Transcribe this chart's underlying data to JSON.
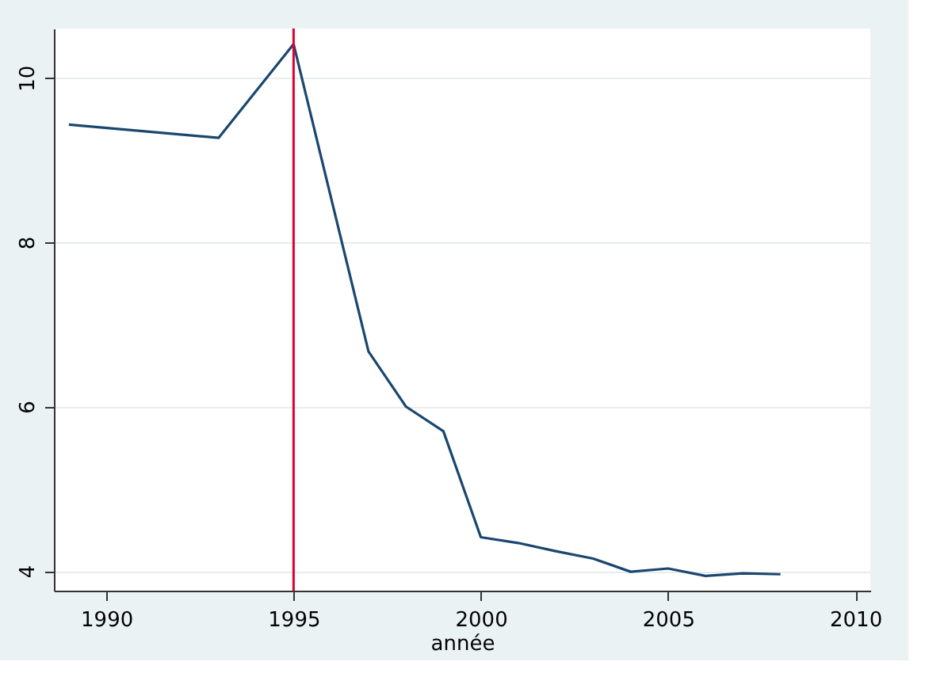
{
  "chart_data": {
    "type": "line",
    "xlabel": "année",
    "x": [
      1989,
      1993,
      1995,
      1997,
      1998,
      1999,
      2000,
      2001,
      2002,
      2003,
      2004,
      2005,
      2006,
      2007,
      2008
    ],
    "series": [
      {
        "color": "#1a476f",
        "values": [
          9.43,
          9.27,
          10.41,
          6.67,
          6.0,
          5.7,
          4.41,
          4.34,
          4.24,
          4.15,
          3.99,
          4.03,
          3.94,
          3.97,
          3.96
        ]
      }
    ],
    "xlim": [
      1988.6,
      2010.4
    ],
    "xticks": [
      1990,
      1995,
      2000,
      2005,
      2010
    ],
    "ylim": [
      3.76,
      10.6
    ],
    "yticks": [
      4,
      6,
      8,
      10
    ],
    "grid": "y",
    "marker": "none",
    "line_style": "solid",
    "ref_lines": [
      {
        "axis": "x",
        "value": 1995,
        "color": "#e00030"
      }
    ]
  }
}
